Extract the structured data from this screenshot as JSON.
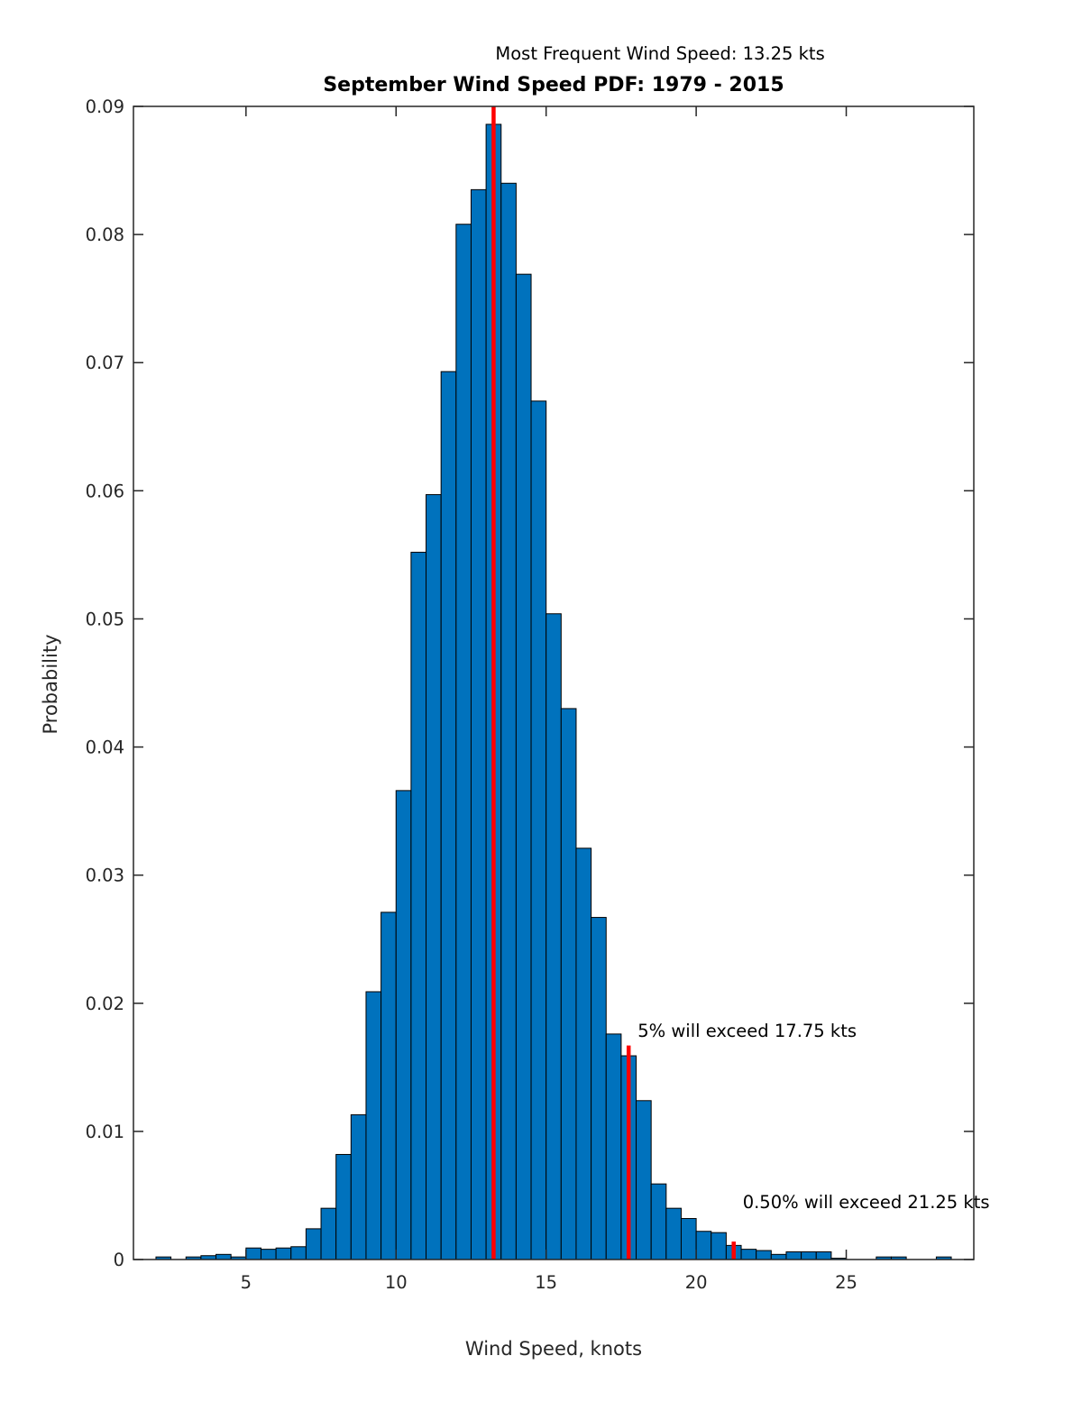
{
  "chart_data": {
    "type": "bar",
    "title": "September Wind Speed PDF: 1979 - 2015",
    "xlabel": "Wind Speed, knots",
    "ylabel": "Probability",
    "xlim": [
      1.25,
      29.25
    ],
    "ylim": [
      0,
      0.09
    ],
    "xticks": [
      5,
      10,
      15,
      20,
      25
    ],
    "yticks": [
      0,
      0.01,
      0.02,
      0.03,
      0.04,
      0.05,
      0.06,
      0.07,
      0.08,
      0.09
    ],
    "ytick_labels": [
      "0",
      "0.01",
      "0.02",
      "0.03",
      "0.04",
      "0.05",
      "0.06",
      "0.07",
      "0.08",
      "0.09"
    ],
    "bin_width": 0.5,
    "bar_color": "#0072BD",
    "bar_edge_color": "#000000",
    "line_color": "#ff0000",
    "axis_color": "#262626",
    "bins": [
      2.25,
      2.75,
      3.25,
      3.75,
      4.25,
      4.75,
      5.25,
      5.75,
      6.25,
      6.75,
      7.25,
      7.75,
      8.25,
      8.75,
      9.25,
      9.75,
      10.25,
      10.75,
      11.25,
      11.75,
      12.25,
      12.75,
      13.25,
      13.75,
      14.25,
      14.75,
      15.25,
      15.75,
      16.25,
      16.75,
      17.25,
      17.75,
      18.25,
      18.75,
      19.25,
      19.75,
      20.25,
      20.75,
      21.25,
      21.75,
      22.25,
      22.75,
      23.25,
      23.75,
      24.25,
      24.75,
      25.25,
      25.75,
      26.25,
      26.75,
      27.25,
      27.75,
      28.25
    ],
    "probabilities": [
      0.0002,
      0.0,
      0.0002,
      0.0003,
      0.0004,
      0.0002,
      0.0009,
      0.0008,
      0.0009,
      0.001,
      0.0024,
      0.004,
      0.0082,
      0.0113,
      0.0209,
      0.0271,
      0.0366,
      0.0552,
      0.0597,
      0.0693,
      0.0808,
      0.0835,
      0.0886,
      0.084,
      0.0769,
      0.067,
      0.0504,
      0.043,
      0.0321,
      0.0267,
      0.0176,
      0.0159,
      0.0124,
      0.0059,
      0.004,
      0.0032,
      0.0022,
      0.0021,
      0.0011,
      0.0008,
      0.0007,
      0.0004,
      0.0006,
      0.0006,
      0.0006,
      0.0001,
      0.0,
      0.0,
      0.0002,
      0.0002,
      0.0,
      0.0,
      0.0002
    ],
    "annotations": {
      "mode": {
        "text": "Most Frequent Wind Speed: 13.25 kts",
        "x": 13.25,
        "line_top": 0.09,
        "line_bottom": 0
      },
      "exceed5": {
        "text": "5% will exceed 17.75 kts",
        "x": 17.75,
        "line_top": 0.0167,
        "line_bottom": 0,
        "text_y": 0.0178
      },
      "exceed05": {
        "text": "0.50% will exceed 21.25 kts",
        "x": 21.25,
        "line_top": 0.0014,
        "line_bottom": 0,
        "text_y": 0.0044
      }
    }
  }
}
